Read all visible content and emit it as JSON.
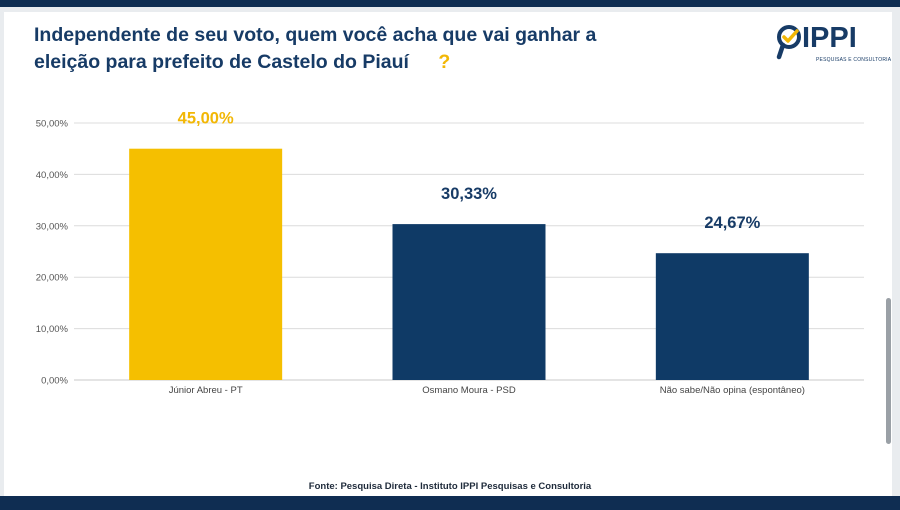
{
  "title": {
    "line1": "Independente de seu voto, quem você acha que vai ganhar a",
    "line2": "eleição para prefeito de  Castelo do Piauí",
    "question_mark": "?"
  },
  "logo": {
    "name": "IPPI",
    "subtitle": "PESQUISAS E CONSULTORIA"
  },
  "source": "Fonte: Pesquisa Direta - Instituto IPPI Pesquisas e Consultoria",
  "colors": {
    "title": "#173b66",
    "highlight": "#f2b705",
    "bar_primary": "#f5bf00",
    "bar_secondary": "#0f3a66"
  },
  "chart_data": {
    "type": "bar",
    "categories": [
      "Júnior Abreu - PT",
      "Osmano Moura - PSD",
      "Não sabe/Não opina (espontâneo)"
    ],
    "values": [
      45.0,
      30.33,
      24.67
    ],
    "value_labels": [
      "45,00%",
      "30,33%",
      "24,67%"
    ],
    "bar_colors": [
      "#f5bf00",
      "#0f3a66",
      "#0f3a66"
    ],
    "label_colors": [
      "#f2b705",
      "#173b66",
      "#173b66"
    ],
    "ylim": [
      0,
      50
    ],
    "yticks": [
      0,
      10,
      20,
      30,
      40,
      50
    ],
    "ytick_labels": [
      "0,00%",
      "10,00%",
      "20,00%",
      "30,00%",
      "40,00%",
      "50,00%"
    ],
    "grid": true,
    "title": "",
    "xlabel": "",
    "ylabel": ""
  }
}
